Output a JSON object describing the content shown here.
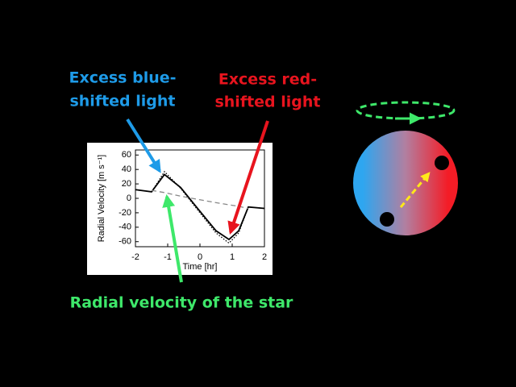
{
  "chart_data": {
    "type": "line",
    "x": [
      -2,
      -1.5,
      -1.1,
      -0.6,
      0,
      0.5,
      0.9,
      1.2,
      1.5,
      2
    ],
    "series": [
      {
        "color": "#000000",
        "style": "solid",
        "values": [
          12,
          9,
          33,
          15,
          -18,
          -45,
          -57,
          -45,
          -12,
          -14
        ]
      },
      {
        "color": "#000000",
        "style": "dotted",
        "values": [
          12,
          9,
          37,
          14,
          -20,
          -48,
          -62,
          -48,
          -12,
          -14
        ]
      },
      {
        "color": "#888888",
        "style": "dashed",
        "values": [
          null,
          11,
          8,
          3,
          -2,
          -6,
          -9,
          -11,
          -14,
          null
        ]
      }
    ],
    "xlabel": "Time [hr]",
    "ylabel": "Radial Velocity [m s⁻¹]",
    "xlim": [
      -2,
      2
    ],
    "ylim": [
      -67,
      67
    ],
    "xticks": [
      -2,
      -1,
      0,
      1,
      2
    ],
    "yticks": [
      -60,
      -40,
      -20,
      0,
      20,
      40,
      60
    ],
    "annotations": [
      {
        "lines": [
          "Excess blue-",
          "shifted light"
        ],
        "color": "#1e9be8"
      },
      {
        "lines": [
          "Excess red-",
          "shifted light"
        ],
        "color": "#e8141e"
      },
      {
        "lines": [
          "Radial velocity of the star"
        ],
        "color": "#3ee86a"
      }
    ]
  }
}
